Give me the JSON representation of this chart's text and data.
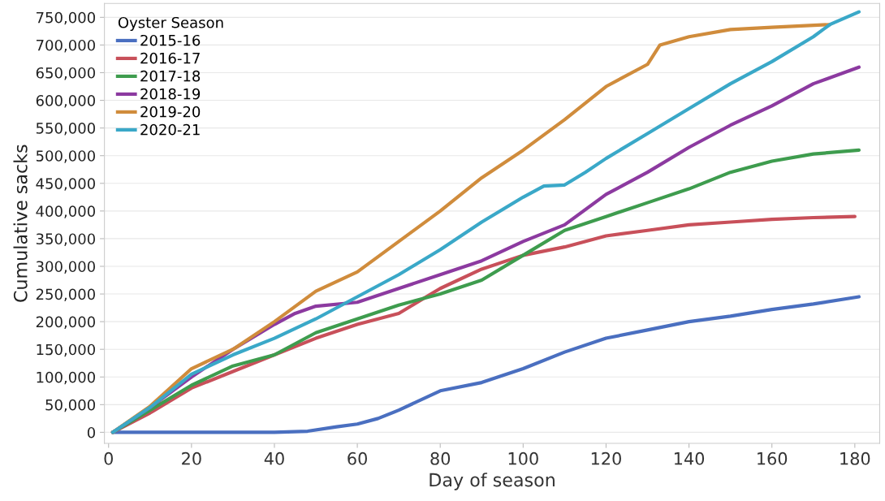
{
  "chart_data": {
    "type": "line",
    "xlabel": "Day of season",
    "ylabel": "Cumulative sacks",
    "legend_title": "Oyster Season",
    "legend": "top left",
    "grid": "y",
    "line_style": "solid",
    "marker": "none",
    "xlim": [
      -1,
      186
    ],
    "xticks": [
      0,
      20,
      40,
      60,
      80,
      100,
      120,
      140,
      160,
      180
    ],
    "ylim": [
      -20000,
      775000
    ],
    "yticks": [
      {
        "value": 0,
        "label": "0"
      },
      {
        "value": 50000,
        "label": "50,000"
      },
      {
        "value": 100000,
        "label": "100,000"
      },
      {
        "value": 150000,
        "label": "150,000"
      },
      {
        "value": 200000,
        "label": "200,000"
      },
      {
        "value": 250000,
        "label": "250,000"
      },
      {
        "value": 300000,
        "label": "300,000"
      },
      {
        "value": 350000,
        "label": "350,000"
      },
      {
        "value": 400000,
        "label": "400,000"
      },
      {
        "value": 450000,
        "label": "450,000"
      },
      {
        "value": 500000,
        "label": "500,000"
      },
      {
        "value": 550000,
        "label": "550,000"
      },
      {
        "value": 600000,
        "label": "600,000"
      },
      {
        "value": 650000,
        "label": "650,000"
      },
      {
        "value": 700000,
        "label": "700,000"
      },
      {
        "value": 750000,
        "label": "750,000"
      }
    ],
    "series": [
      {
        "name": "2015-16",
        "color": "#4a6fc0",
        "x": [
          1,
          40,
          48,
          55,
          60,
          65,
          70,
          80,
          90,
          100,
          110,
          120,
          130,
          140,
          150,
          160,
          170,
          181
        ],
        "values": [
          0,
          0,
          2000,
          10000,
          15000,
          25000,
          40000,
          75000,
          90000,
          115000,
          145000,
          170000,
          185000,
          200000,
          210000,
          222000,
          232000,
          245000
        ]
      },
      {
        "name": "2016-17",
        "color": "#c8505a",
        "x": [
          1,
          10,
          20,
          30,
          40,
          50,
          60,
          70,
          80,
          90,
          100,
          110,
          120,
          130,
          140,
          150,
          160,
          170,
          180
        ],
        "values": [
          0,
          35000,
          80000,
          110000,
          140000,
          170000,
          195000,
          215000,
          260000,
          295000,
          320000,
          335000,
          355000,
          365000,
          375000,
          380000,
          385000,
          388000,
          390000
        ]
      },
      {
        "name": "2017-18",
        "color": "#3e9c4e",
        "x": [
          1,
          10,
          20,
          30,
          40,
          50,
          60,
          70,
          80,
          90,
          100,
          110,
          120,
          130,
          140,
          150,
          160,
          170,
          181
        ],
        "values": [
          0,
          40000,
          85000,
          120000,
          140000,
          180000,
          205000,
          230000,
          250000,
          275000,
          320000,
          365000,
          390000,
          415000,
          440000,
          470000,
          490000,
          503000,
          510000
        ]
      },
      {
        "name": "2018-19",
        "color": "#8c3aa0",
        "x": [
          1,
          10,
          20,
          30,
          40,
          45,
          50,
          60,
          70,
          80,
          90,
          100,
          110,
          120,
          130,
          140,
          150,
          160,
          170,
          181
        ],
        "values": [
          0,
          45000,
          100000,
          150000,
          195000,
          215000,
          228000,
          235000,
          260000,
          285000,
          310000,
          345000,
          375000,
          430000,
          470000,
          515000,
          555000,
          590000,
          630000,
          660000
        ]
      },
      {
        "name": "2019-20",
        "color": "#d08c3c",
        "x": [
          1,
          10,
          20,
          30,
          40,
          50,
          60,
          70,
          80,
          90,
          100,
          110,
          120,
          130,
          133,
          140,
          150,
          160,
          174
        ],
        "values": [
          0,
          47000,
          115000,
          150000,
          200000,
          255000,
          290000,
          345000,
          400000,
          460000,
          510000,
          565000,
          625000,
          665000,
          700000,
          715000,
          728000,
          732000,
          737000
        ]
      },
      {
        "name": "2020-21",
        "color": "#3aa8c8",
        "x": [
          1,
          10,
          20,
          30,
          40,
          50,
          60,
          70,
          80,
          90,
          100,
          105,
          110,
          115,
          120,
          130,
          140,
          150,
          160,
          170,
          174,
          181
        ],
        "values": [
          0,
          45000,
          105000,
          140000,
          170000,
          205000,
          245000,
          285000,
          330000,
          380000,
          425000,
          445000,
          447000,
          470000,
          495000,
          540000,
          585000,
          630000,
          670000,
          715000,
          737000,
          760000
        ]
      }
    ]
  }
}
